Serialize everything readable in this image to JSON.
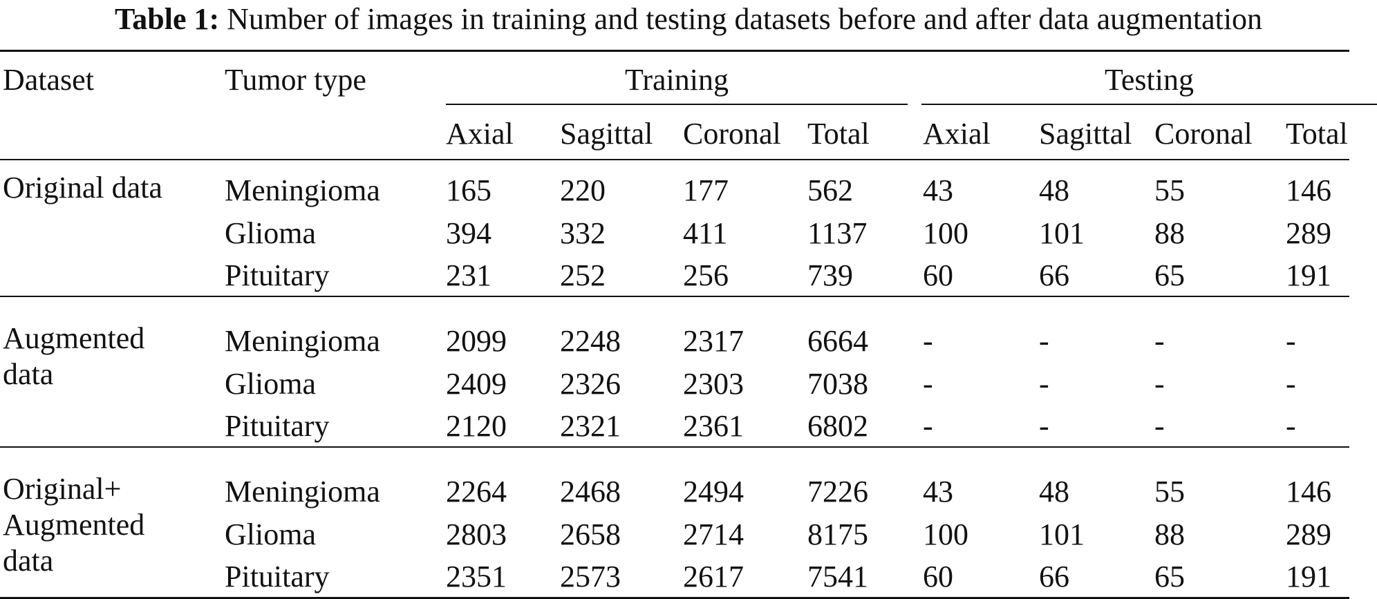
{
  "caption": {
    "label": "Table 1:",
    "text": "Number of images in training and testing datasets before and after data augmentation"
  },
  "table": {
    "headers": {
      "dataset": "Dataset",
      "tumor_type": "Tumor type",
      "training": "Training",
      "testing": "Testing",
      "sub": [
        "Axial",
        "Sagittal",
        "Coronal",
        "Total",
        "Axial",
        "Sagittal",
        "Coronal",
        "Total"
      ]
    },
    "groups": [
      {
        "dataset": [
          "Original data"
        ],
        "rows": [
          {
            "tumor": "Meningioma",
            "values": [
              "165",
              "220",
              "177",
              "562",
              "43",
              "48",
              "55",
              "146"
            ]
          },
          {
            "tumor": "Glioma",
            "values": [
              "394",
              "332",
              "411",
              "1137",
              "100",
              "101",
              "88",
              "289"
            ]
          },
          {
            "tumor": "Pituitary",
            "values": [
              "231",
              "252",
              "256",
              "739",
              "60",
              "66",
              "65",
              "191"
            ]
          }
        ]
      },
      {
        "dataset": [
          "Augmented",
          "data"
        ],
        "rows": [
          {
            "tumor": "Meningioma",
            "values": [
              "2099",
              "2248",
              "2317",
              "6664",
              "-",
              "-",
              "-",
              "-"
            ]
          },
          {
            "tumor": "Glioma",
            "values": [
              "2409",
              "2326",
              "2303",
              "7038",
              "-",
              "-",
              "-",
              "-"
            ]
          },
          {
            "tumor": "Pituitary",
            "values": [
              "2120",
              "2321",
              "2361",
              "6802",
              "-",
              "-",
              "-",
              "-"
            ]
          }
        ]
      },
      {
        "dataset": [
          "Original+",
          "Augmented",
          "data"
        ],
        "rows": [
          {
            "tumor": "Meningioma",
            "values": [
              "2264",
              "2468",
              "2494",
              "7226",
              "43",
              "48",
              "55",
              "146"
            ]
          },
          {
            "tumor": "Glioma",
            "values": [
              "2803",
              "2658",
              "2714",
              "8175",
              "100",
              "101",
              "88",
              "289"
            ]
          },
          {
            "tumor": "Pituitary",
            "values": [
              "2351",
              "2573",
              "2617",
              "7541",
              "60",
              "66",
              "65",
              "191"
            ]
          }
        ]
      }
    ]
  }
}
